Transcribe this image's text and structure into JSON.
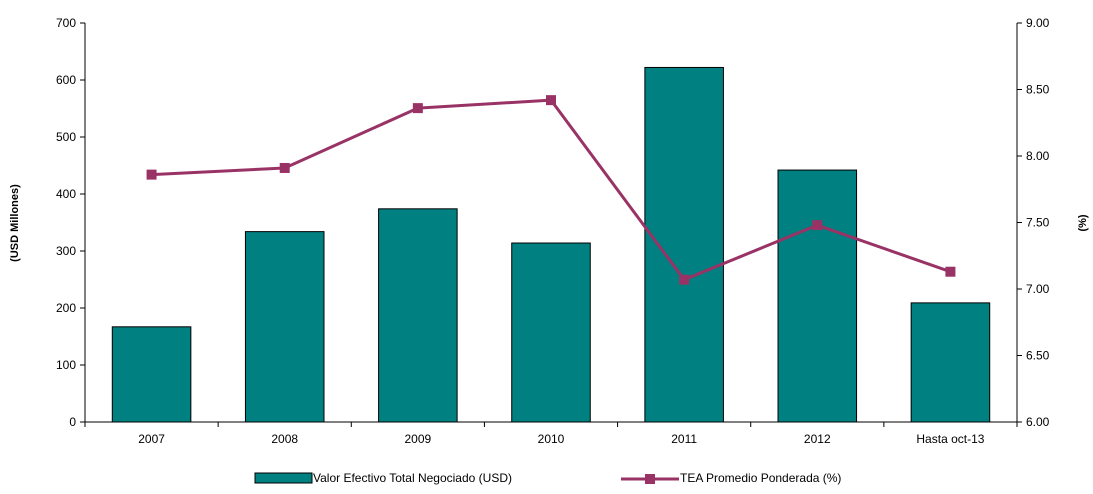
{
  "chart_data": {
    "type": "bar",
    "categories": [
      "2007",
      "2008",
      "2009",
      "2010",
      "2011",
      "2012",
      "Hasta oct-13"
    ],
    "ylabel": "(USD Millones)",
    "ylabel_right": "(%)",
    "ylim": [
      0,
      700
    ],
    "yticks": [
      "0",
      "100",
      "200",
      "300",
      "400",
      "500",
      "600",
      "700"
    ],
    "ylim_right": [
      6.0,
      9.0
    ],
    "yticks_right": [
      "6.00",
      "6.50",
      "7.00",
      "7.50",
      "8.00",
      "8.50",
      "9.00"
    ],
    "grid": false,
    "legend_position": "bottom",
    "series": [
      {
        "name": "Valor Efectivo Total Negociado (USD)",
        "type": "bar",
        "axis": "left",
        "color": "#008080",
        "values": [
          167,
          334,
          374,
          314,
          622,
          442,
          209
        ]
      },
      {
        "name": "TEA Promedio Ponderada (%)",
        "type": "line",
        "axis": "right",
        "marker": "square",
        "color": "#993366",
        "values": [
          7.86,
          7.91,
          8.36,
          8.42,
          7.07,
          7.48,
          7.13
        ]
      }
    ]
  }
}
